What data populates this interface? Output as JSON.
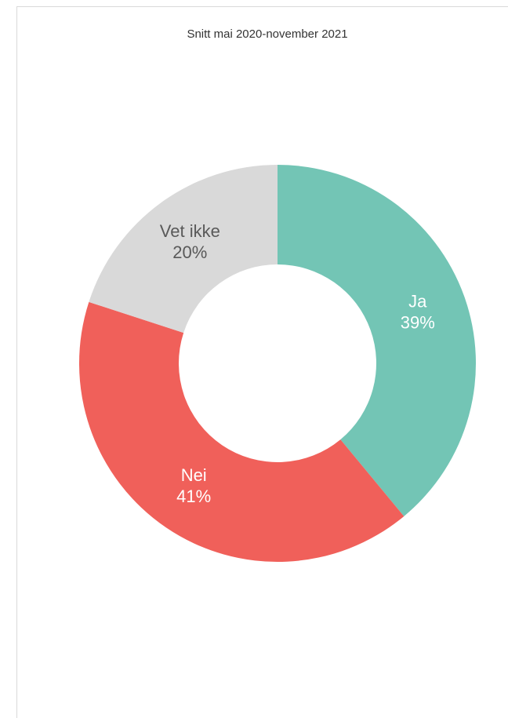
{
  "chart_data": {
    "type": "donut",
    "title": "Snitt mai 2020-november 2021",
    "categories": [
      "Ja",
      "Nei",
      "Vet ikke"
    ],
    "values": [
      39,
      41,
      20
    ],
    "value_labels": [
      "39%",
      "41%",
      "20%"
    ],
    "colors": [
      "#73c5b5",
      "#f0605a",
      "#d9d9d9"
    ],
    "label_colors": [
      "#ffffff",
      "#ffffff",
      "#595959"
    ]
  }
}
